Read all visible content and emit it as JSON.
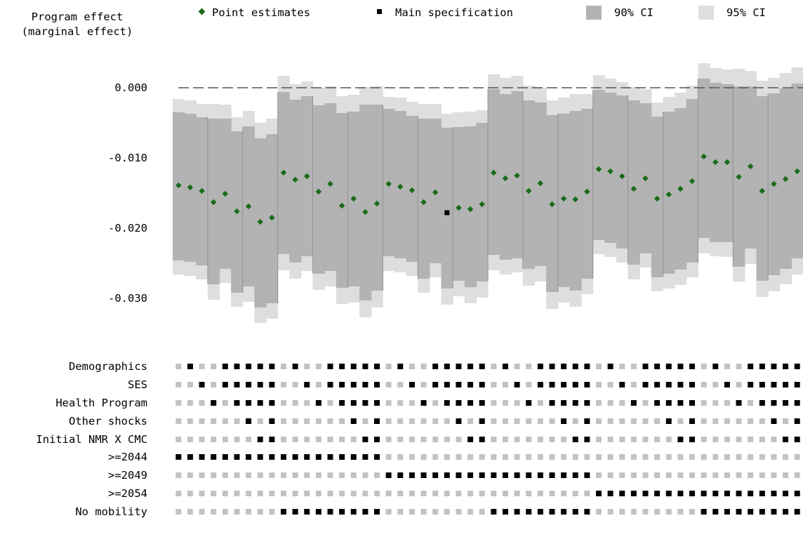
{
  "chart_data": {
    "type": "scatter",
    "ylabel": [
      "Program effect",
      "(marginal effect)"
    ],
    "ylim": [
      -0.0345,
      0.0045
    ],
    "yticks": [
      0.0,
      -0.01,
      -0.02,
      -0.03
    ],
    "ytick_labels": [
      "0.000",
      "-0.010",
      "-0.020",
      "-0.030"
    ],
    "reference_line": 0.0,
    "legend": {
      "placement": "top",
      "entries": [
        {
          "key": "point",
          "label": "Point estimates",
          "color": "#1a6b1a"
        },
        {
          "key": "main",
          "label": "Main specification",
          "color": "#000000"
        },
        {
          "key": "ci90",
          "label": "90% CI",
          "color": "#b3b3b3"
        },
        {
          "key": "ci95",
          "label": "95% CI",
          "color": "#dedede"
        }
      ]
    },
    "main_spec_index": 23,
    "points": [
      [
        -0.0139,
        -0.0035,
        -0.0246,
        -0.0016,
        -0.0266
      ],
      [
        -0.0142,
        -0.0037,
        -0.0248,
        -0.0018,
        -0.0268
      ],
      [
        -0.0147,
        -0.0042,
        -0.0253,
        -0.0023,
        -0.0273
      ],
      [
        -0.0163,
        -0.0044,
        -0.028,
        -0.0023,
        -0.0302
      ],
      [
        -0.0151,
        -0.0044,
        -0.0258,
        -0.0024,
        -0.0278
      ],
      [
        -0.0176,
        -0.0062,
        -0.0292,
        -0.0042,
        -0.0312
      ],
      [
        -0.0169,
        -0.0055,
        -0.0283,
        -0.0033,
        -0.0305
      ],
      [
        -0.0191,
        -0.0072,
        -0.0313,
        -0.005,
        -0.0335
      ],
      [
        -0.0185,
        -0.0066,
        -0.0307,
        -0.0044,
        -0.0329
      ],
      [
        -0.0121,
        -0.0006,
        -0.0237,
        0.0017,
        -0.026
      ],
      [
        -0.0131,
        -0.0017,
        -0.0249,
        0.0005,
        -0.0272
      ],
      [
        -0.0126,
        -0.0012,
        -0.024,
        0.0009,
        -0.0261
      ],
      [
        -0.0148,
        -0.0025,
        -0.0265,
        0.0,
        -0.0288
      ],
      [
        -0.0137,
        -0.0022,
        -0.0261,
        0.0002,
        -0.0283
      ],
      [
        -0.0168,
        -0.0036,
        -0.0285,
        -0.0012,
        -0.0308
      ],
      [
        -0.0158,
        -0.0034,
        -0.0283,
        -0.001,
        -0.0306
      ],
      [
        -0.0177,
        -0.0024,
        -0.0303,
        0.0001,
        -0.0327
      ],
      [
        -0.0165,
        -0.0024,
        -0.0289,
        0.0002,
        -0.0313
      ],
      [
        -0.0137,
        -0.003,
        -0.024,
        -0.0013,
        -0.0261
      ],
      [
        -0.0141,
        -0.0033,
        -0.0243,
        -0.0014,
        -0.0263
      ],
      [
        -0.0146,
        -0.004,
        -0.0248,
        -0.002,
        -0.0268
      ],
      [
        -0.0163,
        -0.0044,
        -0.0272,
        -0.0023,
        -0.0292
      ],
      [
        -0.0149,
        -0.0044,
        -0.025,
        -0.0023,
        -0.027
      ],
      [
        -0.0178,
        -0.0057,
        -0.0286,
        -0.0037,
        -0.0309
      ],
      [
        -0.0171,
        -0.0056,
        -0.0275,
        -0.0035,
        -0.0297
      ],
      [
        -0.0173,
        -0.0055,
        -0.0284,
        -0.0034,
        -0.0307
      ],
      [
        -0.0166,
        -0.005,
        -0.0276,
        -0.0032,
        -0.0299
      ],
      [
        -0.0121,
        -0.0002,
        -0.0238,
        0.0019,
        -0.026
      ],
      [
        -0.0129,
        -0.0009,
        -0.0245,
        0.0014,
        -0.0266
      ],
      [
        -0.0125,
        -0.0005,
        -0.0243,
        0.0017,
        -0.0263
      ],
      [
        -0.0147,
        -0.0018,
        -0.0258,
        0.0003,
        -0.0282
      ],
      [
        -0.0136,
        -0.0021,
        -0.0254,
        0.0,
        -0.0276
      ],
      [
        -0.0166,
        -0.0039,
        -0.0291,
        -0.0018,
        -0.0315
      ],
      [
        -0.0158,
        -0.0037,
        -0.0284,
        -0.0014,
        -0.0306
      ],
      [
        -0.0159,
        -0.0033,
        -0.0289,
        -0.0009,
        -0.0312
      ],
      [
        -0.0148,
        -0.003,
        -0.0272,
        -0.0009,
        -0.0294
      ],
      [
        -0.0116,
        -0.0003,
        -0.0217,
        0.0018,
        -0.0237
      ],
      [
        -0.0119,
        -0.0007,
        -0.0221,
        0.0013,
        -0.0241
      ],
      [
        -0.0126,
        -0.0011,
        -0.0229,
        0.0008,
        -0.0249
      ],
      [
        -0.0144,
        -0.0018,
        -0.0252,
        0.0001,
        -0.0273
      ],
      [
        -0.0129,
        -0.0022,
        -0.0236,
        -0.0002,
        -0.0256
      ],
      [
        -0.0158,
        -0.0041,
        -0.027,
        -0.0021,
        -0.029
      ],
      [
        -0.0152,
        -0.0034,
        -0.0265,
        -0.0013,
        -0.0286
      ],
      [
        -0.0144,
        -0.0029,
        -0.0259,
        -0.0007,
        -0.0281
      ],
      [
        -0.0133,
        -0.0016,
        -0.0249,
        0.0003,
        -0.027
      ],
      [
        -0.0098,
        0.0013,
        -0.0214,
        0.0035,
        -0.0236
      ],
      [
        -0.0106,
        0.0007,
        -0.022,
        0.0028,
        -0.024
      ],
      [
        -0.0106,
        0.0005,
        -0.022,
        0.0026,
        -0.0241
      ],
      [
        -0.0127,
        0.0002,
        -0.0255,
        0.0027,
        -0.0276
      ],
      [
        -0.0112,
        0.0002,
        -0.0229,
        0.0024,
        -0.0251
      ],
      [
        -0.0147,
        -0.0012,
        -0.0275,
        0.001,
        -0.0298
      ],
      [
        -0.0137,
        -0.0008,
        -0.0267,
        0.0014,
        -0.029
      ],
      [
        -0.013,
        -0.0001,
        -0.0258,
        0.0021,
        -0.028
      ],
      [
        -0.0119,
        0.0006,
        -0.0243,
        0.0029,
        -0.0266
      ]
    ],
    "spec_rows": [
      {
        "label": "Demographics",
        "on": [
          0,
          1,
          0,
          0,
          1,
          1,
          1,
          1,
          1,
          0,
          1,
          0,
          0,
          1,
          1,
          1,
          1,
          1,
          0,
          1,
          0,
          0,
          1,
          1,
          1,
          1,
          1,
          0,
          1,
          0,
          0,
          1,
          1,
          1,
          1,
          1,
          0,
          1,
          0,
          0,
          1,
          1,
          1,
          1,
          1,
          0,
          1,
          0,
          0,
          1,
          1,
          1,
          1,
          1
        ]
      },
      {
        "label": "SES",
        "on": [
          0,
          0,
          1,
          0,
          1,
          1,
          1,
          1,
          1,
          0,
          0,
          1,
          0,
          1,
          1,
          1,
          1,
          1,
          0,
          0,
          1,
          0,
          1,
          1,
          1,
          1,
          1,
          0,
          0,
          1,
          0,
          1,
          1,
          1,
          1,
          1,
          0,
          0,
          1,
          0,
          1,
          1,
          1,
          1,
          1,
          0,
          0,
          1,
          0,
          1,
          1,
          1,
          1,
          1
        ]
      },
      {
        "label": "Health Program",
        "on": [
          0,
          0,
          0,
          1,
          0,
          1,
          1,
          1,
          1,
          0,
          0,
          0,
          1,
          0,
          1,
          1,
          1,
          1,
          0,
          0,
          0,
          1,
          0,
          1,
          1,
          1,
          1,
          0,
          0,
          0,
          1,
          0,
          1,
          1,
          1,
          1,
          0,
          0,
          0,
          1,
          0,
          1,
          1,
          1,
          1,
          0,
          0,
          0,
          1,
          0,
          1,
          1,
          1,
          1
        ]
      },
      {
        "label": "Other shocks",
        "on": [
          0,
          0,
          0,
          0,
          0,
          0,
          1,
          0,
          1,
          0,
          0,
          0,
          0,
          0,
          0,
          1,
          0,
          1,
          0,
          0,
          0,
          0,
          0,
          0,
          1,
          0,
          1,
          0,
          0,
          0,
          0,
          0,
          0,
          1,
          0,
          1,
          0,
          0,
          0,
          0,
          0,
          0,
          1,
          0,
          1,
          0,
          0,
          0,
          0,
          0,
          0,
          1,
          0,
          1
        ]
      },
      {
        "label": "Initial NMR X CMC",
        "on": [
          0,
          0,
          0,
          0,
          0,
          0,
          0,
          1,
          1,
          0,
          0,
          0,
          0,
          0,
          0,
          0,
          1,
          1,
          0,
          0,
          0,
          0,
          0,
          0,
          0,
          1,
          1,
          0,
          0,
          0,
          0,
          0,
          0,
          0,
          1,
          1,
          0,
          0,
          0,
          0,
          0,
          0,
          0,
          1,
          1,
          0,
          0,
          0,
          0,
          0,
          0,
          0,
          1,
          1
        ]
      }
    ],
    "sample_rows": [
      {
        "label": ">=2044",
        "on": [
          1,
          1,
          1,
          1,
          1,
          1,
          1,
          1,
          1,
          1,
          1,
          1,
          1,
          1,
          1,
          1,
          1,
          1,
          0,
          0,
          0,
          0,
          0,
          0,
          0,
          0,
          0,
          0,
          0,
          0,
          0,
          0,
          0,
          0,
          0,
          0,
          0,
          0,
          0,
          0,
          0,
          0,
          0,
          0,
          0,
          0,
          0,
          0,
          0,
          0,
          0,
          0,
          0,
          0
        ]
      },
      {
        "label": ">=2049",
        "on": [
          0,
          0,
          0,
          0,
          0,
          0,
          0,
          0,
          0,
          0,
          0,
          0,
          0,
          0,
          0,
          0,
          0,
          0,
          1,
          1,
          1,
          1,
          1,
          1,
          1,
          1,
          1,
          1,
          1,
          1,
          1,
          1,
          1,
          1,
          1,
          1,
          0,
          0,
          0,
          0,
          0,
          0,
          0,
          0,
          0,
          0,
          0,
          0,
          0,
          0,
          0,
          0,
          0,
          0
        ]
      },
      {
        "label": ">=2054",
        "on": [
          0,
          0,
          0,
          0,
          0,
          0,
          0,
          0,
          0,
          0,
          0,
          0,
          0,
          0,
          0,
          0,
          0,
          0,
          0,
          0,
          0,
          0,
          0,
          0,
          0,
          0,
          0,
          0,
          0,
          0,
          0,
          0,
          0,
          0,
          0,
          0,
          1,
          1,
          1,
          1,
          1,
          1,
          1,
          1,
          1,
          1,
          1,
          1,
          1,
          1,
          1,
          1,
          1,
          1
        ]
      },
      {
        "label": "No mobility",
        "on": [
          0,
          0,
          0,
          0,
          0,
          0,
          0,
          0,
          0,
          1,
          1,
          1,
          1,
          1,
          1,
          1,
          1,
          1,
          0,
          0,
          0,
          0,
          0,
          0,
          0,
          0,
          0,
          1,
          1,
          1,
          1,
          1,
          1,
          1,
          1,
          1,
          0,
          0,
          0,
          0,
          0,
          0,
          0,
          0,
          0,
          1,
          1,
          1,
          1,
          1,
          1,
          1,
          1,
          1
        ]
      }
    ],
    "colors": {
      "ci90": "#b3b3b3",
      "ci95": "#dedede",
      "point": "#1a6b1a",
      "main": "#000000",
      "dot_on": "#000000",
      "dot_off": "#c2c2c2",
      "reference_line": "#555555",
      "separator": "#8a8a8a"
    }
  }
}
